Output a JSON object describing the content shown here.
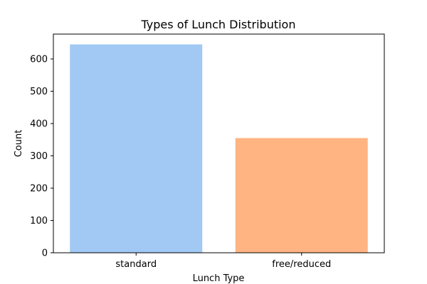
{
  "chart_data": {
    "type": "bar",
    "title": "Types of Lunch Distribution",
    "xlabel": "Lunch Type",
    "ylabel": "Count",
    "categories": [
      "standard",
      "free/reduced"
    ],
    "values": [
      645,
      355
    ],
    "ylim": [
      0,
      677
    ],
    "yticks": [
      0,
      100,
      200,
      300,
      400,
      500,
      600
    ],
    "colors": [
      "#a1c9f4",
      "#ffb482"
    ],
    "grid": false,
    "legend": "none"
  }
}
